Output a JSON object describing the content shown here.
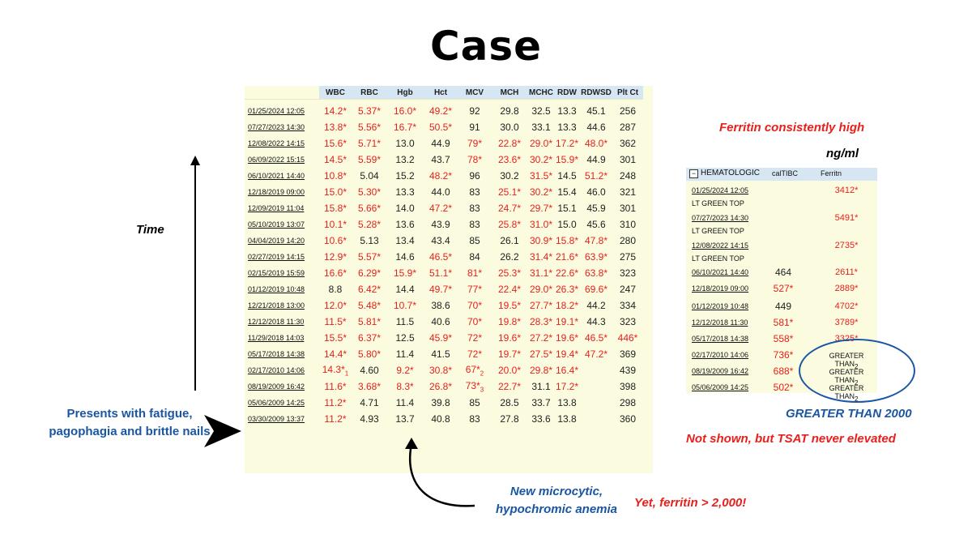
{
  "title": "Case",
  "main_table": {
    "columns": [
      "WBC",
      "RBC",
      "Hgb",
      "Hct",
      "MCV",
      "MCH",
      "MCHC",
      "RDW",
      "RDWSD",
      "Plt Ct"
    ],
    "rows": [
      {
        "date": "01/25/2024 12:05",
        "cells": [
          [
            "14.2*",
            1
          ],
          [
            "5.37*",
            1
          ],
          [
            "16.0*",
            1
          ],
          [
            "49.2*",
            1
          ],
          [
            "92",
            0
          ],
          [
            "29.8",
            0
          ],
          [
            "32.5",
            0
          ],
          [
            "13.3",
            0
          ],
          [
            "45.1",
            0
          ],
          [
            "256",
            0
          ]
        ]
      },
      {
        "date": "07/27/2023 14:30",
        "cells": [
          [
            "13.8*",
            1
          ],
          [
            "5.56*",
            1
          ],
          [
            "16.7*",
            1
          ],
          [
            "50.5*",
            1
          ],
          [
            "91",
            0
          ],
          [
            "30.0",
            0
          ],
          [
            "33.1",
            0
          ],
          [
            "13.3",
            0
          ],
          [
            "44.6",
            0
          ],
          [
            "287",
            0
          ]
        ]
      },
      {
        "date": "12/08/2022 14:15",
        "cells": [
          [
            "15.6*",
            1
          ],
          [
            "5.71*",
            1
          ],
          [
            "13.0",
            0
          ],
          [
            "44.9",
            0
          ],
          [
            "79*",
            1
          ],
          [
            "22.8*",
            1
          ],
          [
            "29.0*",
            1
          ],
          [
            "17.2*",
            1
          ],
          [
            "48.0*",
            1
          ],
          [
            "362",
            0
          ]
        ]
      },
      {
        "date": "06/09/2022 15:15",
        "cells": [
          [
            "14.5*",
            1
          ],
          [
            "5.59*",
            1
          ],
          [
            "13.2",
            0
          ],
          [
            "43.7",
            0
          ],
          [
            "78*",
            1
          ],
          [
            "23.6*",
            1
          ],
          [
            "30.2*",
            1
          ],
          [
            "15.9*",
            1
          ],
          [
            "44.9",
            0
          ],
          [
            "301",
            0
          ]
        ]
      },
      {
        "date": "06/10/2021 14:40",
        "cells": [
          [
            "10.8*",
            1
          ],
          [
            "5.04",
            0
          ],
          [
            "15.2",
            0
          ],
          [
            "48.2*",
            1
          ],
          [
            "96",
            0
          ],
          [
            "30.2",
            0
          ],
          [
            "31.5*",
            1
          ],
          [
            "14.5",
            0
          ],
          [
            "51.2*",
            1
          ],
          [
            "248",
            0
          ]
        ]
      },
      {
        "date": "12/18/2019 09:00",
        "cells": [
          [
            "15.0*",
            1
          ],
          [
            "5.30*",
            1
          ],
          [
            "13.3",
            0
          ],
          [
            "44.0",
            0
          ],
          [
            "83",
            0
          ],
          [
            "25.1*",
            1
          ],
          [
            "30.2*",
            1
          ],
          [
            "15.4",
            0
          ],
          [
            "46.0",
            0
          ],
          [
            "321",
            0
          ]
        ]
      },
      {
        "date": "12/09/2019 11:04",
        "cells": [
          [
            "15.8*",
            1
          ],
          [
            "5.66*",
            1
          ],
          [
            "14.0",
            0
          ],
          [
            "47.2*",
            1
          ],
          [
            "83",
            0
          ],
          [
            "24.7*",
            1
          ],
          [
            "29.7*",
            1
          ],
          [
            "15.1",
            0
          ],
          [
            "45.9",
            0
          ],
          [
            "301",
            0
          ]
        ]
      },
      {
        "date": "05/10/2019 13:07",
        "cells": [
          [
            "10.1*",
            1
          ],
          [
            "5.28*",
            1
          ],
          [
            "13.6",
            0
          ],
          [
            "43.9",
            0
          ],
          [
            "83",
            0
          ],
          [
            "25.8*",
            1
          ],
          [
            "31.0*",
            1
          ],
          [
            "15.0",
            0
          ],
          [
            "45.6",
            0
          ],
          [
            "310",
            0
          ]
        ]
      },
      {
        "date": "04/04/2019 14:20",
        "cells": [
          [
            "10.6*",
            1
          ],
          [
            "5.13",
            0
          ],
          [
            "13.4",
            0
          ],
          [
            "43.4",
            0
          ],
          [
            "85",
            0
          ],
          [
            "26.1",
            0
          ],
          [
            "30.9*",
            1
          ],
          [
            "15.8*",
            1
          ],
          [
            "47.8*",
            1
          ],
          [
            "280",
            0
          ]
        ]
      },
      {
        "date": "02/27/2019 14:15",
        "cells": [
          [
            "12.9*",
            1
          ],
          [
            "5.57*",
            1
          ],
          [
            "14.6",
            0
          ],
          [
            "46.5*",
            1
          ],
          [
            "84",
            0
          ],
          [
            "26.2",
            0
          ],
          [
            "31.4*",
            1
          ],
          [
            "21.6*",
            1
          ],
          [
            "63.9*",
            1
          ],
          [
            "275",
            0
          ]
        ]
      },
      {
        "date": "02/15/2019 15:59",
        "cells": [
          [
            "16.6*",
            1
          ],
          [
            "6.29*",
            1
          ],
          [
            "15.9*",
            1
          ],
          [
            "51.1*",
            1
          ],
          [
            "81*",
            1
          ],
          [
            "25.3*",
            1
          ],
          [
            "31.1*",
            1
          ],
          [
            "22.6*",
            1
          ],
          [
            "63.8*",
            1
          ],
          [
            "323",
            0
          ]
        ]
      },
      {
        "date": "01/12/2019 10:48",
        "cells": [
          [
            "8.8",
            0
          ],
          [
            "6.42*",
            1
          ],
          [
            "14.4",
            0
          ],
          [
            "49.7*",
            1
          ],
          [
            "77*",
            1
          ],
          [
            "22.4*",
            1
          ],
          [
            "29.0*",
            1
          ],
          [
            "26.3*",
            1
          ],
          [
            "69.6*",
            1
          ],
          [
            "247",
            0
          ]
        ]
      },
      {
        "date": "12/21/2018 13:00",
        "cells": [
          [
            "12.0*",
            1
          ],
          [
            "5.48*",
            1
          ],
          [
            "10.7*",
            1
          ],
          [
            "38.6",
            0
          ],
          [
            "70*",
            1
          ],
          [
            "19.5*",
            1
          ],
          [
            "27.7*",
            1
          ],
          [
            "18.2*",
            1
          ],
          [
            "44.2",
            0
          ],
          [
            "334",
            0
          ]
        ]
      },
      {
        "date": "12/12/2018 11:30",
        "cells": [
          [
            "11.5*",
            1
          ],
          [
            "5.81*",
            1
          ],
          [
            "11.5",
            0
          ],
          [
            "40.6",
            0
          ],
          [
            "70*",
            1
          ],
          [
            "19.8*",
            1
          ],
          [
            "28.3*",
            1
          ],
          [
            "19.1*",
            1
          ],
          [
            "44.3",
            0
          ],
          [
            "323",
            0
          ]
        ]
      },
      {
        "date": "11/29/2018 14:03",
        "cells": [
          [
            "15.5*",
            1
          ],
          [
            "6.37*",
            1
          ],
          [
            "12.5",
            0
          ],
          [
            "45.9*",
            1
          ],
          [
            "72*",
            1
          ],
          [
            "19.6*",
            1
          ],
          [
            "27.2*",
            1
          ],
          [
            "19.6*",
            1
          ],
          [
            "46.5*",
            1
          ],
          [
            "446*",
            1
          ]
        ]
      },
      {
        "date": "05/17/2018 14:38",
        "cells": [
          [
            "14.4*",
            1
          ],
          [
            "5.80*",
            1
          ],
          [
            "11.4",
            0
          ],
          [
            "41.5",
            0
          ],
          [
            "72*",
            1
          ],
          [
            "19.7*",
            1
          ],
          [
            "27.5*",
            1
          ],
          [
            "19.4*",
            1
          ],
          [
            "47.2*",
            1
          ],
          [
            "369",
            0
          ]
        ]
      },
      {
        "date": "02/17/2010 14:06",
        "cells": [
          [
            "14.3*1",
            1
          ],
          [
            "4.60",
            0
          ],
          [
            "9.2*",
            1
          ],
          [
            "30.8*",
            1
          ],
          [
            "67*2",
            1
          ],
          [
            "20.0*",
            1
          ],
          [
            "29.8*",
            1
          ],
          [
            "16.4*",
            1
          ],
          [
            "",
            0
          ],
          [
            "439",
            0
          ]
        ]
      },
      {
        "date": "08/19/2009 16:42",
        "cells": [
          [
            "11.6*",
            1
          ],
          [
            "3.68*",
            1
          ],
          [
            "8.3*",
            1
          ],
          [
            "26.8*",
            1
          ],
          [
            "73*3",
            1
          ],
          [
            "22.7*",
            1
          ],
          [
            "31.1",
            0
          ],
          [
            "17.2*",
            1
          ],
          [
            "",
            0
          ],
          [
            "398",
            0
          ]
        ]
      },
      {
        "date": "05/06/2009 14:25",
        "cells": [
          [
            "11.2*",
            1
          ],
          [
            "4.71",
            0
          ],
          [
            "11.4",
            0
          ],
          [
            "39.8",
            0
          ],
          [
            "85",
            0
          ],
          [
            "28.5",
            0
          ],
          [
            "33.7",
            0
          ],
          [
            "13.8",
            0
          ],
          [
            "",
            0
          ],
          [
            "298",
            0
          ]
        ]
      },
      {
        "date": "03/30/2009 13:37",
        "cells": [
          [
            "11.2*",
            1
          ],
          [
            "4.93",
            0
          ],
          [
            "13.7",
            0
          ],
          [
            "40.8",
            0
          ],
          [
            "83",
            0
          ],
          [
            "27.8",
            0
          ],
          [
            "33.6",
            0
          ],
          [
            "13.8",
            0
          ],
          [
            "",
            0
          ],
          [
            "360",
            0
          ]
        ]
      }
    ]
  },
  "annotations": {
    "time": "Time",
    "presents": "Presents with  fatigue, pagophagia and brittle nails",
    "new_micro": "New microcytic, hypochromic anemia",
    "yet_ferritin": "Yet, ferritin > 2,000!",
    "ferritin_high": "Ferritin consistently high",
    "units": "ng/ml",
    "greater_than_2000": "GREATER THAN 2000",
    "not_shown": "Not shown, but TSAT never elevated"
  },
  "ferritin_table": {
    "section": "HEMATOLOGIC",
    "col_tibc": "calTIBC",
    "col_ferritin": "Ferritn",
    "rows": [
      {
        "kind": "date",
        "text": "01/25/2024 12:05",
        "tibc": "",
        "ferritin": "3412*"
      },
      {
        "kind": "text",
        "text": "LT GREEN TOP",
        "tibc": "",
        "ferritin": ""
      },
      {
        "kind": "date",
        "text": "07/27/2023 14:30",
        "tibc": "",
        "ferritin": "5491*"
      },
      {
        "kind": "text",
        "text": "LT GREEN TOP",
        "tibc": "",
        "ferritin": ""
      },
      {
        "kind": "date",
        "text": "12/08/2022 14:15",
        "tibc": "",
        "ferritin": "2735*"
      },
      {
        "kind": "text",
        "text": "LT GREEN TOP",
        "tibc": "",
        "ferritin": ""
      },
      {
        "kind": "date",
        "text": "06/10/2021 14:40",
        "tibc": "464",
        "ferritin": "2611*"
      },
      {
        "kind": "date",
        "text": "12/18/2019 09:00",
        "tibc": "527*",
        "ferritin": "2889*"
      },
      {
        "kind": "date",
        "text": "01/12/2019 10:48",
        "tibc": "449",
        "ferritin": "4702*"
      },
      {
        "kind": "date",
        "text": "12/12/2018 11:30",
        "tibc": "581*",
        "ferritin": "3789*"
      },
      {
        "kind": "date",
        "text": "05/17/2018 14:38",
        "tibc": "558*",
        "ferritin": "3325*"
      },
      {
        "kind": "date",
        "text": "02/17/2010 14:06",
        "tibc": "736*",
        "ferritin": "GREATER THAN2"
      },
      {
        "kind": "date",
        "text": "08/19/2009 16:42",
        "tibc": "688*",
        "ferritin": "GREATER THAN2"
      },
      {
        "kind": "date",
        "text": "05/06/2009 14:25",
        "tibc": "502*",
        "ferritin": "GREATER THAN2"
      }
    ]
  },
  "colors": {
    "red": "#e8201b",
    "blue": "#1a56a3",
    "header_bg": "#d7e6f3",
    "table_bg": "#fbfbe0"
  }
}
